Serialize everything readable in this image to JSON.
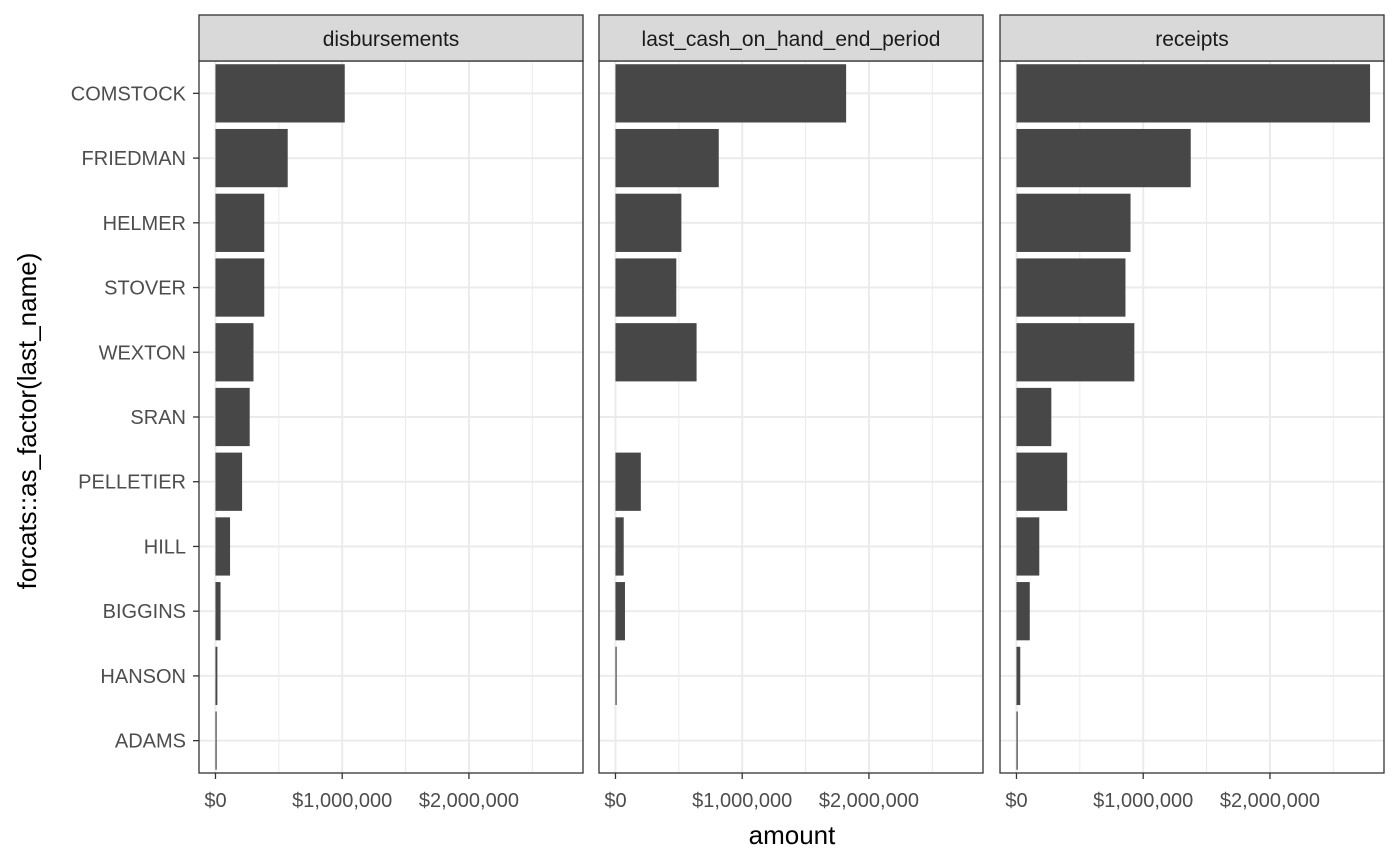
{
  "chart_data": {
    "type": "bar",
    "orientation": "horizontal",
    "facet_wrap": true,
    "ylabel": "forcats::as_factor(last_name)",
    "xlabel": "amount",
    "categories": [
      "COMSTOCK",
      "FRIEDMAN",
      "HELMER",
      "STOVER",
      "WEXTON",
      "SRAN",
      "PELLETIER",
      "HILL",
      "BIGGINS",
      "HANSON",
      "ADAMS"
    ],
    "xlim": [
      -130000,
      2900000
    ],
    "x_ticks": [
      0,
      1000000,
      2000000
    ],
    "x_tick_labels": [
      "$0",
      "$1,000,000",
      "$2,000,000"
    ],
    "grid": true,
    "bar_color": "#474747",
    "panels": [
      {
        "strip": "disbursements",
        "values": [
          1020000,
          570000,
          385000,
          385000,
          300000,
          270000,
          210000,
          115000,
          40000,
          15000,
          8000
        ]
      },
      {
        "strip": "last_cash_on_hand_end_period",
        "values": [
          1820000,
          815000,
          520000,
          480000,
          640000,
          0,
          200000,
          65000,
          75000,
          8000,
          0
        ]
      },
      {
        "strip": "receipts",
        "values": [
          2790000,
          1375000,
          900000,
          860000,
          930000,
          275000,
          400000,
          180000,
          105000,
          30000,
          10000
        ]
      }
    ]
  }
}
